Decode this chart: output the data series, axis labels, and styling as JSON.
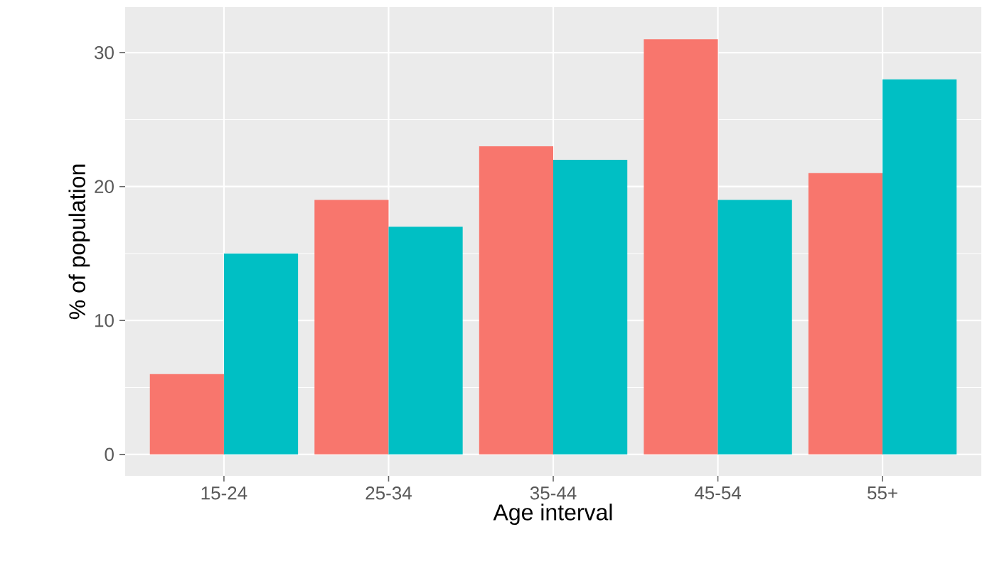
{
  "chart_data": {
    "type": "bar",
    "xlabel": "Age interval",
    "ylabel": "% of population",
    "categories": [
      "15-24",
      "25-34",
      "35-44",
      "45-54",
      "55+"
    ],
    "series": [
      {
        "color": "#f8766d",
        "values": [
          6,
          19,
          23,
          31,
          21
        ]
      },
      {
        "color": "#00bfc4",
        "values": [
          15,
          17,
          22,
          19,
          28
        ]
      }
    ],
    "ylim": [
      -1.6,
      33.4
    ],
    "yticks": [
      0,
      10,
      20,
      30
    ],
    "grid": true
  }
}
